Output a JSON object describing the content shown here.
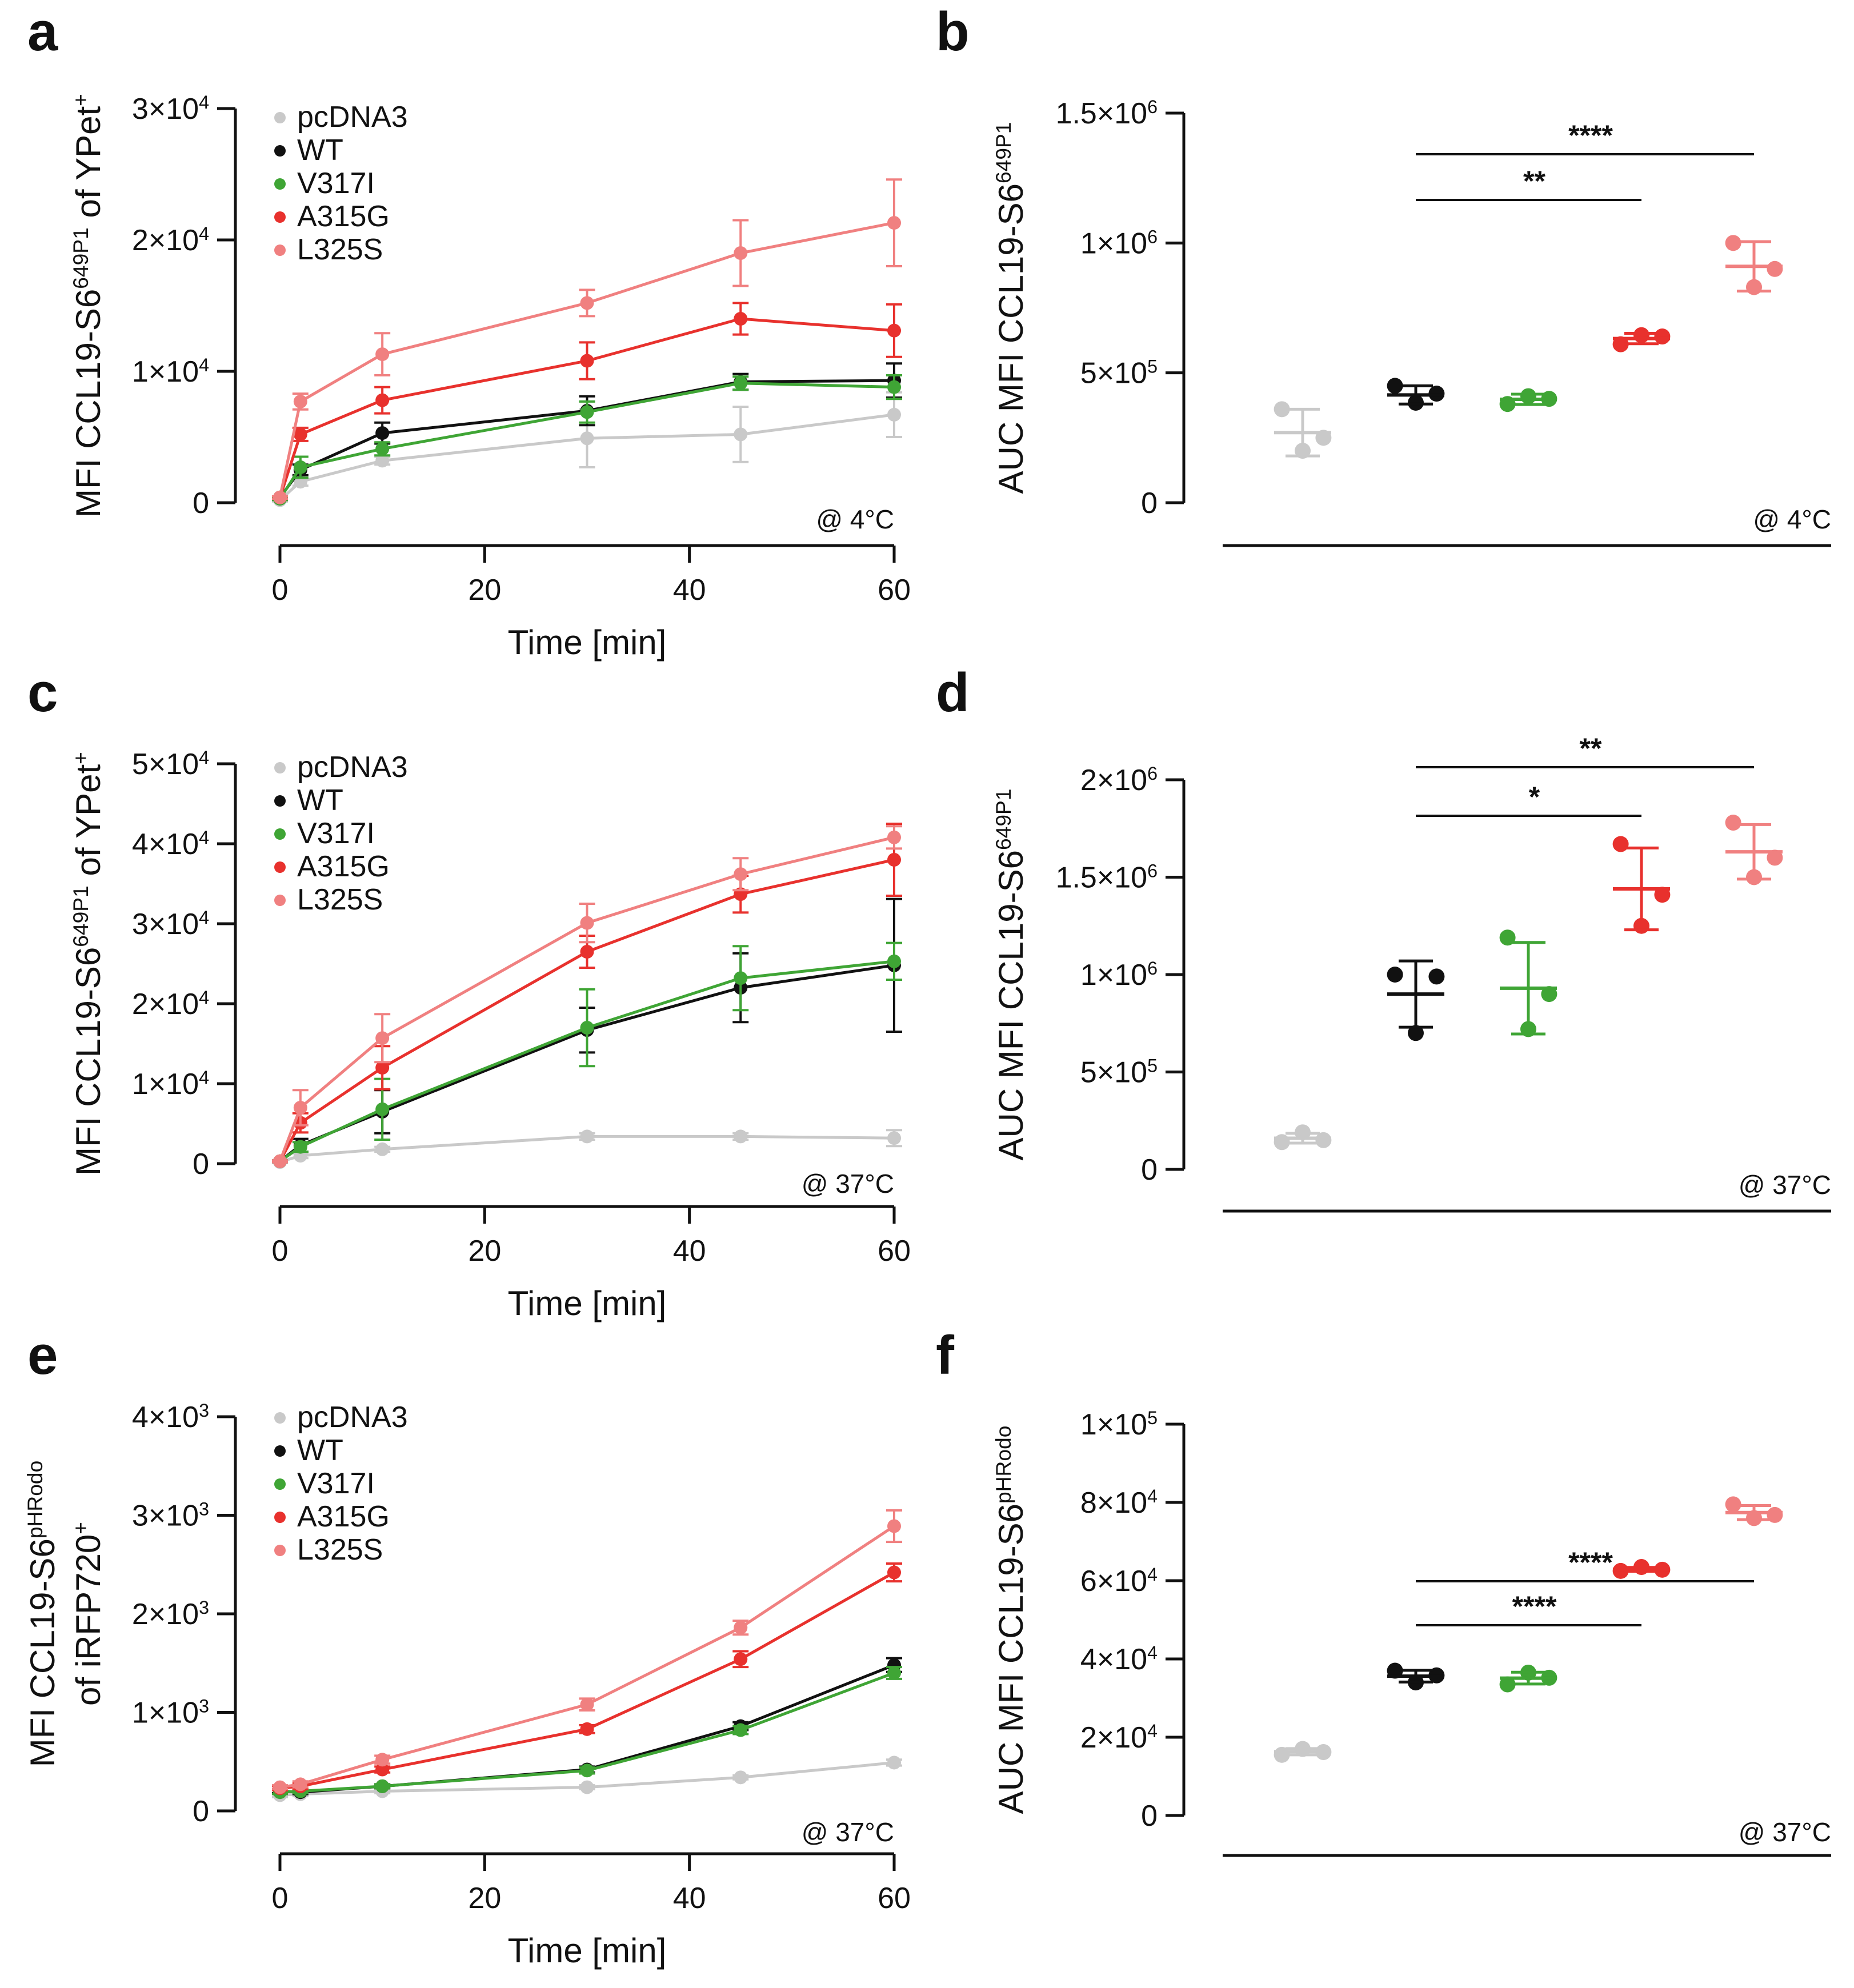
{
  "colors": {
    "pcDNA3": "#c9c9c9",
    "WT": "#111111",
    "V317I": "#3fa535",
    "A315G": "#e8312d",
    "L325S": "#f08080"
  },
  "chart_data": [
    {
      "panel": "a",
      "type": "line",
      "ylabel_parts": [
        "MFI CCL19-S6",
        "649P1",
        " of YPet",
        "+"
      ],
      "xlabel": "Time [min]",
      "condition": "@ 4°C",
      "x_ticks": [
        "0",
        "20",
        "40",
        "60"
      ],
      "y_ticks": [
        {
          "value": 0,
          "base": "0",
          "exp": ""
        },
        {
          "value": 10000,
          "base": "1×10",
          "exp": "4"
        },
        {
          "value": 20000,
          "base": "2×10",
          "exp": "4"
        },
        {
          "value": 30000,
          "base": "3×10",
          "exp": "4"
        }
      ],
      "xlim": [
        0,
        60
      ],
      "ylim": [
        0,
        30000
      ],
      "legend": [
        "pcDNA3",
        "WT",
        "V317I",
        "A315G",
        "L325S"
      ],
      "x": [
        0,
        2,
        10,
        30,
        45,
        60
      ],
      "series": [
        {
          "name": "pcDNA3",
          "values": [
            200,
            1600,
            3200,
            4900,
            5200,
            6700
          ],
          "errors": [
            100,
            300,
            300,
            2200,
            2100,
            1700
          ]
        },
        {
          "name": "WT",
          "values": [
            400,
            2500,
            5300,
            7000,
            9200,
            9300
          ],
          "errors": [
            100,
            400,
            800,
            1100,
            600,
            1300
          ]
        },
        {
          "name": "V317I",
          "values": [
            300,
            2700,
            4100,
            6900,
            9100,
            8800
          ],
          "errors": [
            100,
            800,
            500,
            800,
            500,
            900
          ]
        },
        {
          "name": "A315G",
          "values": [
            400,
            5200,
            7800,
            10800,
            14000,
            13100
          ],
          "errors": [
            100,
            500,
            1000,
            1400,
            1200,
            2000
          ]
        },
        {
          "name": "L325S",
          "values": [
            400,
            7700,
            11300,
            15200,
            19000,
            21300
          ],
          "errors": [
            100,
            600,
            1600,
            1000,
            2500,
            3300
          ]
        }
      ]
    },
    {
      "panel": "b",
      "type": "scatter",
      "ylabel_parts": [
        "AUC MFI CCL19-S6",
        "649P1"
      ],
      "condition": "@ 4°C",
      "y_ticks": [
        {
          "value": 0,
          "base": "0",
          "exp": ""
        },
        {
          "value": 500000,
          "base": "5×10",
          "exp": "5"
        },
        {
          "value": 1000000,
          "base": "1×10",
          "exp": "6"
        },
        {
          "value": 1500000,
          "base": "1.5×10",
          "exp": "6"
        }
      ],
      "ylim": [
        0,
        1500000
      ],
      "groups": [
        {
          "name": "pcDNA3",
          "points": [
            360000,
            200000,
            250000
          ],
          "mean": 270000,
          "sd": 90000
        },
        {
          "name": "WT",
          "points": [
            450000,
            385000,
            420000
          ],
          "mean": 415000,
          "sd": 35000
        },
        {
          "name": "V317I",
          "points": [
            380000,
            410000,
            400000
          ],
          "mean": 398000,
          "sd": 20000
        },
        {
          "name": "A315G",
          "points": [
            610000,
            645000,
            640000
          ],
          "mean": 632000,
          "sd": 20000
        },
        {
          "name": "L325S",
          "points": [
            1000000,
            830000,
            900000
          ],
          "mean": 910000,
          "sd": 95000
        }
      ],
      "significance": [
        {
          "from": "WT",
          "to": "A315G",
          "label": "**"
        },
        {
          "from": "WT",
          "to": "L325S",
          "label": "****"
        }
      ]
    },
    {
      "panel": "c",
      "type": "line",
      "ylabel_parts": [
        "MFI CCL19-S6",
        "649P1",
        " of YPet",
        "+"
      ],
      "xlabel": "Time [min]",
      "condition": "@ 37°C",
      "x_ticks": [
        "0",
        "20",
        "40",
        "60"
      ],
      "y_ticks": [
        {
          "value": 0,
          "base": "0",
          "exp": ""
        },
        {
          "value": 10000,
          "base": "1×10",
          "exp": "4"
        },
        {
          "value": 20000,
          "base": "2×10",
          "exp": "4"
        },
        {
          "value": 30000,
          "base": "3×10",
          "exp": "4"
        },
        {
          "value": 40000,
          "base": "4×10",
          "exp": "4"
        },
        {
          "value": 50000,
          "base": "5×10",
          "exp": "4"
        }
      ],
      "xlim": [
        0,
        60
      ],
      "ylim": [
        0,
        50000
      ],
      "legend": [
        "pcDNA3",
        "WT",
        "V317I",
        "A315G",
        "L325S"
      ],
      "x": [
        0,
        2,
        10,
        30,
        45,
        60
      ],
      "series": [
        {
          "name": "pcDNA3",
          "values": [
            200,
            1000,
            1800,
            3400,
            3400,
            3200
          ],
          "errors": [
            100,
            300,
            300,
            400,
            400,
            1000
          ]
        },
        {
          "name": "WT",
          "values": [
            300,
            2300,
            6500,
            16700,
            22000,
            24800
          ],
          "errors": [
            100,
            800,
            2700,
            2800,
            4300,
            8300
          ]
        },
        {
          "name": "V317I",
          "values": [
            300,
            2100,
            6800,
            17000,
            23200,
            25300
          ],
          "errors": [
            100,
            600,
            3800,
            4800,
            4000,
            2300
          ]
        },
        {
          "name": "A315G",
          "values": [
            300,
            5100,
            12000,
            26500,
            33700,
            38000
          ],
          "errors": [
            100,
            1200,
            2700,
            2000,
            2300,
            4500
          ]
        },
        {
          "name": "L325S",
          "values": [
            300,
            7000,
            15700,
            30100,
            36200,
            40800
          ],
          "errors": [
            100,
            2200,
            3000,
            2400,
            2000,
            1400
          ]
        }
      ]
    },
    {
      "panel": "d",
      "type": "scatter",
      "ylabel_parts": [
        "AUC MFI CCL19-S6",
        "649P1"
      ],
      "condition": "@ 37°C",
      "y_ticks": [
        {
          "value": 0,
          "base": "0",
          "exp": ""
        },
        {
          "value": 500000,
          "base": "5×10",
          "exp": "5"
        },
        {
          "value": 1000000,
          "base": "1×10",
          "exp": "6"
        },
        {
          "value": 1500000,
          "base": "1.5×10",
          "exp": "6"
        },
        {
          "value": 2000000,
          "base": "2×10",
          "exp": "6"
        }
      ],
      "ylim": [
        0,
        2000000
      ],
      "groups": [
        {
          "name": "pcDNA3",
          "points": [
            140000,
            190000,
            150000
          ],
          "mean": 160000,
          "sd": 25000
        },
        {
          "name": "WT",
          "points": [
            1000000,
            700000,
            990000
          ],
          "mean": 900000,
          "sd": 170000
        },
        {
          "name": "V317I",
          "points": [
            1190000,
            720000,
            900000
          ],
          "mean": 930000,
          "sd": 235000
        },
        {
          "name": "A315G",
          "points": [
            1670000,
            1250000,
            1410000
          ],
          "mean": 1440000,
          "sd": 210000
        },
        {
          "name": "L325S",
          "points": [
            1780000,
            1500000,
            1600000
          ],
          "mean": 1630000,
          "sd": 140000
        }
      ],
      "significance": [
        {
          "from": "WT",
          "to": "A315G",
          "label": "*"
        },
        {
          "from": "WT",
          "to": "L325S",
          "label": "**"
        }
      ]
    },
    {
      "panel": "e",
      "type": "line",
      "ylabel_parts": [
        "MFI CCL19-S6",
        "pHRodo"
      ],
      "ylabel_line2_parts": [
        "of iRFP720",
        "+"
      ],
      "xlabel": "Time [min]",
      "condition": "@ 37°C",
      "x_ticks": [
        "0",
        "20",
        "40",
        "60"
      ],
      "y_ticks": [
        {
          "value": 0,
          "base": "0",
          "exp": ""
        },
        {
          "value": 1000,
          "base": "1×10",
          "exp": "3"
        },
        {
          "value": 2000,
          "base": "2×10",
          "exp": "3"
        },
        {
          "value": 3000,
          "base": "3×10",
          "exp": "3"
        },
        {
          "value": 4000,
          "base": "4×10",
          "exp": "3"
        }
      ],
      "xlim": [
        0,
        60
      ],
      "ylim": [
        0,
        4000
      ],
      "legend": [
        "pcDNA3",
        "WT",
        "V317I",
        "A315G",
        "L325S"
      ],
      "x": [
        0,
        2,
        10,
        30,
        45,
        60
      ],
      "series": [
        {
          "name": "pcDNA3",
          "values": [
            160,
            170,
            200,
            240,
            340,
            490
          ],
          "errors": [
            20,
            20,
            20,
            20,
            20,
            30
          ]
        },
        {
          "name": "WT",
          "values": [
            200,
            190,
            250,
            420,
            860,
            1480
          ],
          "errors": [
            20,
            20,
            20,
            30,
            40,
            70
          ]
        },
        {
          "name": "V317I",
          "values": [
            190,
            200,
            250,
            410,
            820,
            1400
          ],
          "errors": [
            20,
            20,
            20,
            30,
            40,
            60
          ]
        },
        {
          "name": "A315G",
          "values": [
            230,
            250,
            420,
            830,
            1540,
            2420
          ],
          "errors": [
            20,
            30,
            30,
            40,
            80,
            90
          ]
        },
        {
          "name": "L325S",
          "values": [
            240,
            270,
            520,
            1080,
            1860,
            2890
          ],
          "errors": [
            20,
            30,
            40,
            60,
            70,
            160
          ]
        }
      ]
    },
    {
      "panel": "f",
      "type": "scatter",
      "ylabel_parts": [
        "AUC MFI CCL19-S6",
        "pHRodo"
      ],
      "condition": "@ 37°C",
      "y_ticks": [
        {
          "value": 0,
          "base": "0",
          "exp": ""
        },
        {
          "value": 20000,
          "base": "2×10",
          "exp": "4"
        },
        {
          "value": 40000,
          "base": "4×10",
          "exp": "4"
        },
        {
          "value": 60000,
          "base": "6×10",
          "exp": "4"
        },
        {
          "value": 80000,
          "base": "8×10",
          "exp": "4"
        },
        {
          "value": 100000,
          "base": "1×10",
          "exp": "5"
        }
      ],
      "ylim": [
        0,
        100000
      ],
      "groups": [
        {
          "name": "pcDNA3",
          "points": [
            15500,
            17000,
            16200
          ],
          "mean": 16300,
          "sd": 800
        },
        {
          "name": "WT",
          "points": [
            37000,
            34000,
            35800
          ],
          "mean": 35600,
          "sd": 1500
        },
        {
          "name": "V317I",
          "points": [
            33500,
            36500,
            35200
          ],
          "mean": 35100,
          "sd": 1500
        },
        {
          "name": "A315G",
          "points": [
            62500,
            63500,
            62800
          ],
          "mean": 62900,
          "sd": 500
        },
        {
          "name": "L325S",
          "points": [
            79500,
            76000,
            76800
          ],
          "mean": 77400,
          "sd": 1800
        }
      ],
      "significance": [
        {
          "from": "WT",
          "to": "A315G",
          "label": "****"
        },
        {
          "from": "WT",
          "to": "L325S",
          "label": "****"
        }
      ]
    }
  ]
}
